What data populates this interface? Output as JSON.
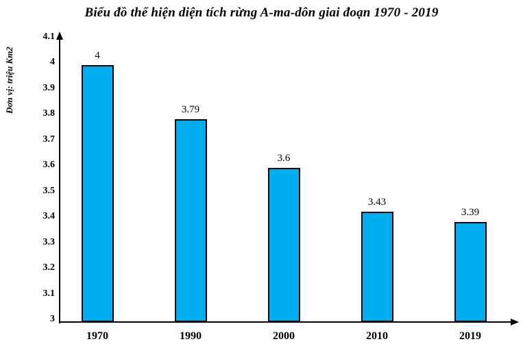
{
  "title": "Biểu đồ thể hiện diện tích rừng A-ma-dôn giai đoạn 1970 - 2019",
  "y_axis_unit_label": "Đơn vị: triệu Km2",
  "colors": {
    "bar_fill": "#00AEEF",
    "bar_border": "#000000",
    "axis": "#000000",
    "text": "#000000",
    "background": "#FFFFFF"
  },
  "chart_data": {
    "type": "bar",
    "title": "Biểu đồ thể hiện diện tích rừng A-ma-dôn giai đoạn 1970 - 2019",
    "categories": [
      "1970",
      "1990",
      "2000",
      "2010",
      "2019"
    ],
    "values": [
      4,
      3.79,
      3.6,
      3.43,
      3.39
    ],
    "value_labels": [
      "4",
      "3.79",
      "3.6",
      "3.43",
      "3.39"
    ],
    "xlabel": "",
    "ylabel": "Đơn vị: triệu Km2",
    "ylim": [
      3,
      4.1
    ],
    "y_ticks": [
      "3",
      "3.1",
      "3.2",
      "3.3",
      "3.4",
      "3.5",
      "3.6",
      "3.7",
      "3.8",
      "3.9",
      "4",
      "4.1"
    ],
    "grid": false,
    "legend": null,
    "bar_color": "#00AEEF"
  }
}
